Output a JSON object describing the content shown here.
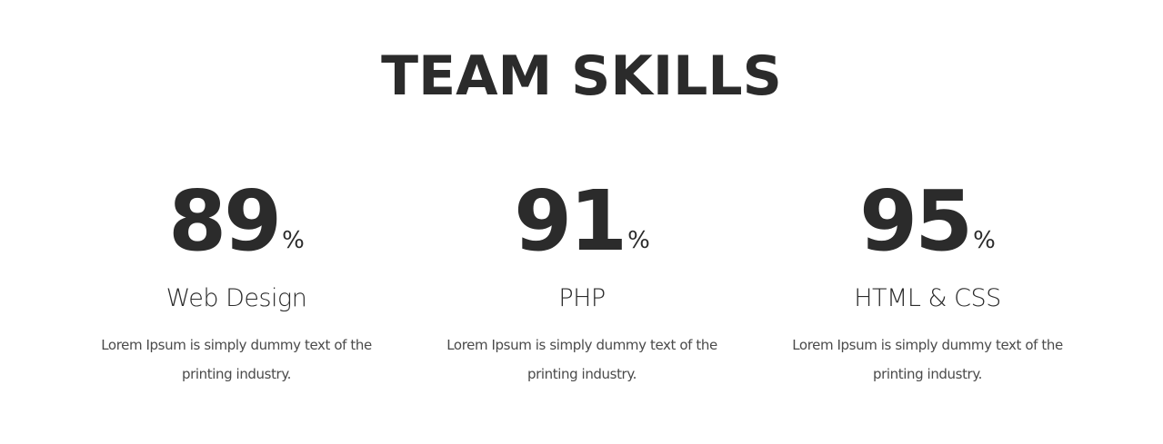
{
  "section": {
    "title": "TEAM SKILLS"
  },
  "skills": [
    {
      "value": "89",
      "unit": "%",
      "name": "Web Design",
      "description": "Lorem Ipsum is simply dummy text of the printing industry."
    },
    {
      "value": "91",
      "unit": "%",
      "name": "PHP",
      "description": "Lorem Ipsum is simply dummy text of the printing industry."
    },
    {
      "value": "95",
      "unit": "%",
      "name": "HTML & CSS",
      "description": "Lorem Ipsum is simply dummy text of the printing industry."
    }
  ]
}
